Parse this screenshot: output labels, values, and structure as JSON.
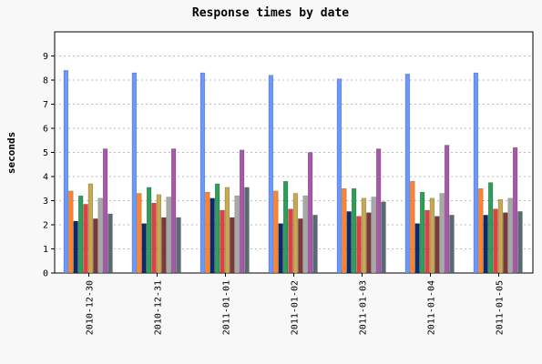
{
  "chart_data": {
    "type": "bar",
    "title": "Response times by date",
    "xlabel": "",
    "ylabel": "seconds",
    "ylim": [
      0,
      10
    ],
    "yticks": [
      0,
      1,
      2,
      3,
      4,
      5,
      6,
      7,
      8,
      9
    ],
    "grid": true,
    "legend": "none",
    "categories": [
      "2010-12-30",
      "2010-12-31",
      "2011-01-01",
      "2011-01-02",
      "2011-01-03",
      "2011-01-04",
      "2011-01-05"
    ],
    "series": [
      {
        "color": "#6a98ff",
        "values": [
          8.4,
          8.3,
          8.3,
          8.2,
          8.05,
          8.25,
          8.3
        ]
      },
      {
        "color": "#ff8230",
        "values": [
          3.4,
          3.3,
          3.35,
          3.4,
          3.5,
          3.8,
          3.5
        ]
      },
      {
        "color": "#0a2a6a",
        "values": [
          2.15,
          2.05,
          3.1,
          2.05,
          2.55,
          2.05,
          2.4
        ]
      },
      {
        "color": "#2e9e5a",
        "values": [
          3.2,
          3.55,
          3.7,
          3.8,
          3.5,
          3.35,
          3.75
        ]
      },
      {
        "color": "#e04040",
        "values": [
          2.85,
          2.9,
          2.6,
          2.65,
          2.35,
          2.6,
          2.65
        ]
      },
      {
        "color": "#c8a850",
        "values": [
          3.7,
          3.25,
          3.55,
          3.3,
          3.1,
          3.1,
          3.05
        ]
      },
      {
        "color": "#7a3a3a",
        "values": [
          2.25,
          2.3,
          2.3,
          2.25,
          2.5,
          2.35,
          2.5
        ]
      },
      {
        "color": "#a8a8a8",
        "values": [
          3.1,
          3.15,
          3.2,
          3.2,
          3.15,
          3.3,
          3.1
        ]
      },
      {
        "color": "#a858a8",
        "values": [
          5.15,
          5.15,
          5.1,
          5.0,
          5.15,
          5.3,
          5.2
        ]
      },
      {
        "color": "#5a6a74",
        "values": [
          2.45,
          2.3,
          3.55,
          2.4,
          2.95,
          2.4,
          2.55
        ]
      }
    ]
  }
}
